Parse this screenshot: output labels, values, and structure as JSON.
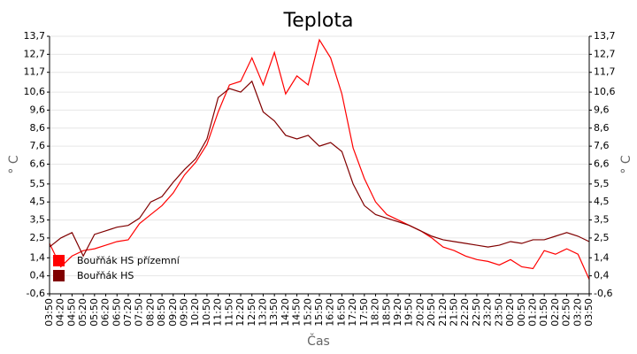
{
  "chart_data": {
    "type": "line",
    "title": "Teplota",
    "x_label": "Čas",
    "y_label": "° C",
    "y2_label": "° C",
    "categories": [
      "03:50",
      "04:20",
      "04:50",
      "05:20",
      "05:50",
      "06:20",
      "06:50",
      "07:20",
      "07:50",
      "08:20",
      "08:50",
      "09:20",
      "09:50",
      "10:20",
      "10:50",
      "11:20",
      "11:50",
      "12:20",
      "12:50",
      "13:20",
      "13:50",
      "14:20",
      "14:50",
      "15:20",
      "15:50",
      "16:20",
      "16:50",
      "17:20",
      "17:50",
      "18:20",
      "18:50",
      "19:20",
      "19:50",
      "20:20",
      "20:50",
      "21:20",
      "21:50",
      "22:20",
      "22:50",
      "23:20",
      "23:50",
      "00:20",
      "00:50",
      "01:20",
      "01:50",
      "02:20",
      "02:50",
      "03:20",
      "03:50"
    ],
    "series": [
      {
        "name": "Bouřňák HS přízemní",
        "color": "#ff0000",
        "values": [
          2.2,
          0.9,
          1.5,
          1.8,
          1.9,
          2.1,
          2.3,
          2.4,
          3.3,
          3.8,
          4.3,
          5.0,
          6.0,
          6.7,
          7.7,
          9.5,
          11.0,
          11.2,
          12.5,
          11.0,
          12.8,
          10.5,
          11.5,
          11.0,
          13.5,
          12.5,
          10.5,
          7.5,
          5.8,
          4.5,
          3.8,
          3.5,
          3.2,
          2.9,
          2.5,
          2.0,
          1.8,
          1.5,
          1.3,
          1.2,
          1.0,
          1.3,
          0.9,
          0.8,
          1.8,
          1.6,
          1.9,
          1.6,
          0.2
        ]
      },
      {
        "name": "Bouřňák HS",
        "color": "#800000",
        "values": [
          2.0,
          2.5,
          2.8,
          1.5,
          2.7,
          2.9,
          3.1,
          3.2,
          3.6,
          4.5,
          4.8,
          5.6,
          6.3,
          6.9,
          8.0,
          10.3,
          10.8,
          10.6,
          11.2,
          9.5,
          9.0,
          8.2,
          8.0,
          8.2,
          7.6,
          7.8,
          7.3,
          5.5,
          4.3,
          3.8,
          3.6,
          3.4,
          3.2,
          2.9,
          2.6,
          2.4,
          2.3,
          2.2,
          2.1,
          2.0,
          2.1,
          2.3,
          2.2,
          2.4,
          2.4,
          2.6,
          2.8,
          2.6,
          2.3
        ]
      }
    ],
    "ylim": [
      -0.6,
      13.7
    ],
    "yticks": [
      {
        "value": -0.6,
        "label": "-0,6"
      },
      {
        "value": 0.4,
        "label": "0,4"
      },
      {
        "value": 1.4,
        "label": "1,4"
      },
      {
        "value": 2.5,
        "label": "2,5"
      },
      {
        "value": 3.5,
        "label": "3,5"
      },
      {
        "value": 4.5,
        "label": "4,5"
      },
      {
        "value": 5.5,
        "label": "5,5"
      },
      {
        "value": 6.6,
        "label": "6,6"
      },
      {
        "value": 7.6,
        "label": "7,6"
      },
      {
        "value": 8.6,
        "label": "8,6"
      },
      {
        "value": 9.6,
        "label": "9,6"
      },
      {
        "value": 10.6,
        "label": "10,6"
      },
      {
        "value": 11.7,
        "label": "11,7"
      },
      {
        "value": 12.7,
        "label": "12,7"
      },
      {
        "value": 13.7,
        "label": "13,7"
      }
    ],
    "y2lim": [
      -0.6,
      13.7
    ],
    "y2ticks": [
      {
        "value": -0.6,
        "label": "-0,6"
      },
      {
        "value": 0.4,
        "label": "0,4"
      },
      {
        "value": 1.4,
        "label": "1,4"
      },
      {
        "value": 2.5,
        "label": "2,5"
      },
      {
        "value": 3.5,
        "label": "3,5"
      },
      {
        "value": 4.5,
        "label": "4,5"
      },
      {
        "value": 5.5,
        "label": "5,5"
      },
      {
        "value": 6.6,
        "label": "6,6"
      },
      {
        "value": 7.6,
        "label": "7,6"
      },
      {
        "value": 8.6,
        "label": "8,6"
      },
      {
        "value": 9.6,
        "label": "9,6"
      },
      {
        "value": 10.6,
        "label": "10,6"
      },
      {
        "value": 11.7,
        "label": "11,7"
      },
      {
        "value": 12.7,
        "label": "12,7"
      },
      {
        "value": 13.7,
        "label": "13,7"
      }
    ],
    "grid": true,
    "legend": "bottom-left"
  }
}
